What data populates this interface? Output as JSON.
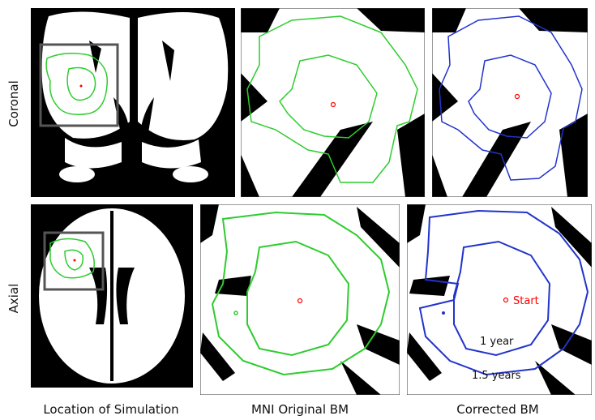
{
  "rows": [
    "Coronal",
    "Axial"
  ],
  "columns": [
    "Location of Simulation",
    "MNI Original BM",
    "Corrected BM"
  ],
  "annotations": {
    "start": "Start",
    "inner_contour": "1 year",
    "outer_contour": "1.5 years"
  }
}
